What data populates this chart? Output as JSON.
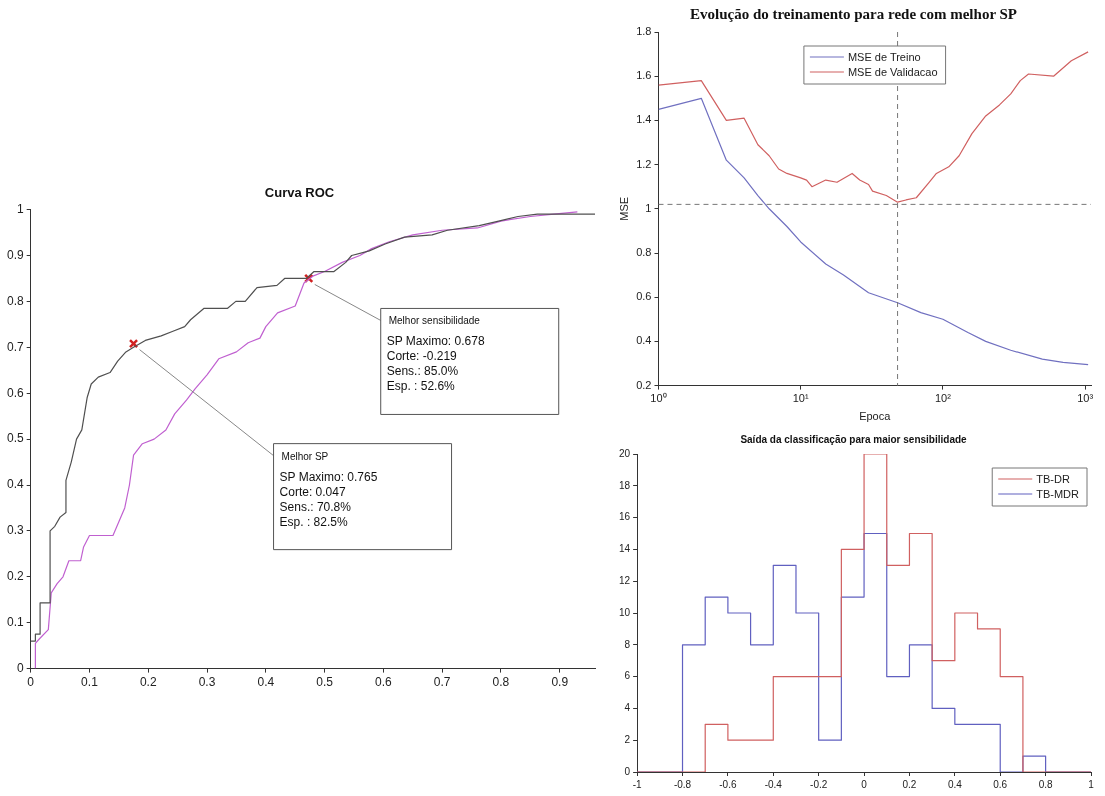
{
  "chart_data": [
    {
      "type": "line",
      "title": "Curva ROC",
      "xlim": [
        0,
        0.96
      ],
      "xticks": [
        0,
        0.1,
        0.2,
        0.3,
        0.4,
        0.5,
        0.6,
        0.7,
        0.8,
        0.9
      ],
      "ylim": [
        0,
        1
      ],
      "yticks": [
        0,
        0.1,
        0.2,
        0.3,
        0.4,
        0.5,
        0.6,
        0.7,
        0.8,
        0.9,
        1
      ],
      "marker": "none",
      "series": [
        {
          "color": "#505050",
          "x": [
            0,
            0.008,
            0.008,
            0.016,
            0.016,
            0.033,
            0.033,
            0.041,
            0.05,
            0.06,
            0.06,
            0.069,
            0.078,
            0.087,
            0.096,
            0.103,
            0.115,
            0.135,
            0.148,
            0.162,
            0.175,
            0.195,
            0.222,
            0.242,
            0.262,
            0.272,
            0.295,
            0.335,
            0.349,
            0.365,
            0.385,
            0.419,
            0.432,
            0.469,
            0.482,
            0.516,
            0.536,
            0.546,
            0.576,
            0.603,
            0.636,
            0.683,
            0.709,
            0.763,
            0.796,
            0.829,
            0.862,
            0.96
          ],
          "values": [
            0.06,
            0.06,
            0.075,
            0.075,
            0.143,
            0.143,
            0.3,
            0.31,
            0.33,
            0.34,
            0.41,
            0.45,
            0.5,
            0.52,
            0.59,
            0.62,
            0.635,
            0.645,
            0.67,
            0.69,
            0.7,
            0.715,
            0.725,
            0.735,
            0.745,
            0.76,
            0.785,
            0.785,
            0.8,
            0.8,
            0.83,
            0.835,
            0.85,
            0.85,
            0.865,
            0.865,
            0.885,
            0.9,
            0.91,
            0.925,
            0.94,
            0.945,
            0.955,
            0.965,
            0.975,
            0.985,
            0.99,
            0.99
          ]
        },
        {
          "color": "#c060d0",
          "x": [
            0.008,
            0.008,
            0.015,
            0.03,
            0.035,
            0.045,
            0.055,
            0.065,
            0.085,
            0.09,
            0.1,
            0.14,
            0.15,
            0.16,
            0.168,
            0.175,
            0.19,
            0.21,
            0.23,
            0.245,
            0.265,
            0.28,
            0.3,
            0.32,
            0.35,
            0.37,
            0.39,
            0.4,
            0.42,
            0.45,
            0.465,
            0.48,
            0.5,
            0.53,
            0.56,
            0.58,
            0.61,
            0.65,
            0.7,
            0.76,
            0.8,
            0.85,
            0.89,
            0.93
          ],
          "values": [
            0,
            0.055,
            0.065,
            0.085,
            0.165,
            0.185,
            0.2,
            0.235,
            0.235,
            0.265,
            0.29,
            0.29,
            0.32,
            0.35,
            0.4,
            0.465,
            0.49,
            0.5,
            0.52,
            0.555,
            0.585,
            0.61,
            0.64,
            0.675,
            0.69,
            0.71,
            0.72,
            0.745,
            0.775,
            0.79,
            0.84,
            0.855,
            0.865,
            0.885,
            0.9,
            0.915,
            0.93,
            0.945,
            0.955,
            0.96,
            0.975,
            0.985,
            0.99,
            0.995
          ]
        },
        {
          "type": "scatter",
          "marker": "cross",
          "color": "#d02020",
          "x": [
            0.175,
            0.473
          ],
          "values": [
            0.708,
            0.85
          ]
        }
      ],
      "annotations": [
        {
          "text": "Melhor SP\nSP Maximo: 0.765\nCorte: 0.047\nSens.: 70.8%\nEsp. : 82.5%",
          "x": 0.175,
          "y": 0.708
        },
        {
          "text": "Melhor sensibilidade\nSP Maximo: 0.678\nCorte: -0.219\nSens.: 85.0%\nEsp. : 52.6%",
          "x": 0.473,
          "y": 0.85
        }
      ]
    },
    {
      "type": "line",
      "title": "Evolução do treinamento para rede com melhor SP",
      "xlabel": "Epoca",
      "ylabel": "MSE",
      "log": "x",
      "xlim": [
        1,
        1100
      ],
      "xticks": [
        {
          "value": 1,
          "label": "10⁰"
        },
        {
          "value": 10,
          "label": "10¹"
        },
        {
          "value": 100,
          "label": "10²"
        },
        {
          "value": 1000,
          "label": "10³"
        }
      ],
      "ylim": [
        0.2,
        1.8
      ],
      "yticks": [
        0.2,
        0.4,
        0.6,
        0.8,
        1,
        1.2,
        1.4,
        1.6,
        1.8
      ],
      "legend": "top",
      "marker": "none",
      "series": [
        {
          "name": "MSE de Treino",
          "color": "#7070c0",
          "x": [
            1,
            2,
            3,
            4,
            5,
            6,
            8,
            10,
            15,
            20,
            30,
            48,
            70,
            100,
            150,
            200,
            300,
            500,
            700,
            1050
          ],
          "values": [
            1.45,
            1.5,
            1.22,
            1.14,
            1.06,
            1,
            0.92,
            0.85,
            0.75,
            0.7,
            0.62,
            0.575,
            0.53,
            0.5,
            0.44,
            0.4,
            0.36,
            0.32,
            0.305,
            0.295
          ]
        },
        {
          "name": "MSE de Validacao",
          "color": "#d06060",
          "x": [
            1,
            2,
            3,
            4,
            5,
            6,
            7,
            8,
            10,
            11,
            12,
            15,
            18,
            23,
            26,
            30,
            32,
            40,
            48,
            55,
            65,
            80,
            90,
            110,
            130,
            160,
            200,
            250,
            300,
            350,
            400,
            600,
            800,
            1050
          ],
          "values": [
            1.56,
            1.58,
            1.4,
            1.41,
            1.29,
            1.24,
            1.18,
            1.16,
            1.14,
            1.13,
            1.1,
            1.13,
            1.12,
            1.16,
            1.13,
            1.11,
            1.08,
            1.06,
            1.03,
            1.04,
            1.05,
            1.12,
            1.16,
            1.19,
            1.24,
            1.34,
            1.42,
            1.47,
            1.52,
            1.58,
            1.61,
            1.6,
            1.67,
            1.71
          ]
        }
      ],
      "ref_lines": [
        {
          "axis": "x",
          "value": 48,
          "line_style": "dashed",
          "color": "#777777"
        },
        {
          "axis": "y",
          "value": 1.02,
          "line_style": "dashed",
          "color": "#777777"
        }
      ]
    },
    {
      "type": "histogram",
      "title": "Saída da classificação para maior sensibilidade",
      "bins": [
        -1,
        -0.9,
        -0.8,
        -0.7,
        -0.6,
        -0.5,
        -0.4,
        -0.3,
        -0.2,
        -0.1,
        0,
        0.1,
        0.2,
        0.3,
        0.4,
        0.5,
        0.6,
        0.7,
        0.8,
        0.9,
        1
      ],
      "xlim": [
        -1,
        1
      ],
      "xticks": [
        -1,
        -0.8,
        -0.6,
        -0.4,
        -0.2,
        0,
        0.2,
        0.4,
        0.6,
        0.8,
        1
      ],
      "ylim": [
        0,
        20
      ],
      "yticks": [
        0,
        2,
        4,
        6,
        8,
        10,
        12,
        14,
        16,
        18,
        20
      ],
      "legend": "top right",
      "series": [
        {
          "name": "TB-DR",
          "color": "#d06060",
          "values": [
            0,
            0,
            0,
            3,
            2,
            2,
            6,
            6,
            6,
            14,
            20,
            13,
            15,
            7,
            10,
            9,
            6,
            0,
            0,
            0
          ]
        },
        {
          "name": "TB-MDR",
          "color": "#6060c0",
          "values": [
            0,
            0,
            8,
            11,
            10,
            8,
            13,
            10,
            2,
            11,
            15,
            6,
            8,
            4,
            3,
            3,
            0,
            1,
            0,
            0
          ]
        }
      ]
    }
  ]
}
